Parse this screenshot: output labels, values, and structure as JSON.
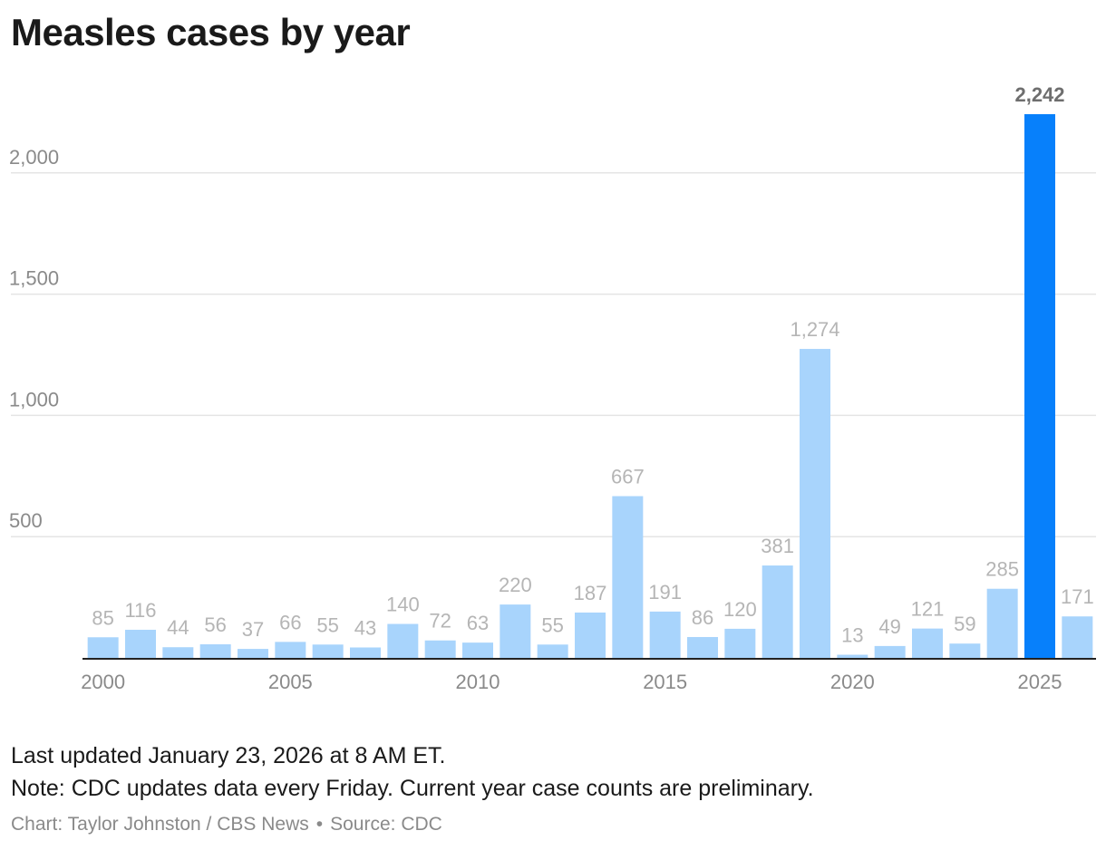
{
  "title": "Measles cases by year",
  "notes": {
    "updated": "Last updated January 23, 2026 at 8 AM ET.",
    "note": "Note: CDC updates data every Friday. Current year case counts are preliminary."
  },
  "credit": {
    "chart": "Chart: Taylor Johnston / CBS News",
    "separator": "•",
    "source": "Source: CDC"
  },
  "chart_data": {
    "type": "bar",
    "categories": [
      "2000",
      "2001",
      "2002",
      "2003",
      "2004",
      "2005",
      "2006",
      "2007",
      "2008",
      "2009",
      "2010",
      "2011",
      "2012",
      "2013",
      "2014",
      "2015",
      "2016",
      "2017",
      "2018",
      "2019",
      "2020",
      "2021",
      "2022",
      "2023",
      "2024",
      "2025",
      "2026"
    ],
    "values": [
      85,
      116,
      44,
      56,
      37,
      66,
      55,
      43,
      140,
      72,
      63,
      220,
      55,
      187,
      667,
      191,
      86,
      120,
      381,
      1274,
      13,
      49,
      121,
      59,
      285,
      2242,
      171
    ],
    "data_labels": [
      "85",
      "116",
      "44",
      "56",
      "37",
      "66",
      "55",
      "43",
      "140",
      "72",
      "63",
      "220",
      "55",
      "187",
      "667",
      "191",
      "86",
      "120",
      "381",
      "1,274",
      "13",
      "49",
      "121",
      "59",
      "285",
      "2,242",
      "171"
    ],
    "highlight_category": "2025",
    "x_ticks": [
      "2000",
      "2005",
      "2010",
      "2015",
      "2020",
      "2025"
    ],
    "y_ticks": [
      500,
      1000,
      1500,
      2000
    ],
    "y_tick_labels": [
      "500",
      "1,000",
      "1,500",
      "2,000"
    ],
    "ylim": [
      0,
      2242
    ],
    "grid": true,
    "colors": {
      "bar": "#a8d4fc",
      "highlight": "#0780fb",
      "label": "#b5b5b5",
      "highlight_label": "#6e6e6e",
      "grid": "#e4e4e4",
      "axis": "#222222",
      "tick_label": "#8a8a8a"
    }
  }
}
